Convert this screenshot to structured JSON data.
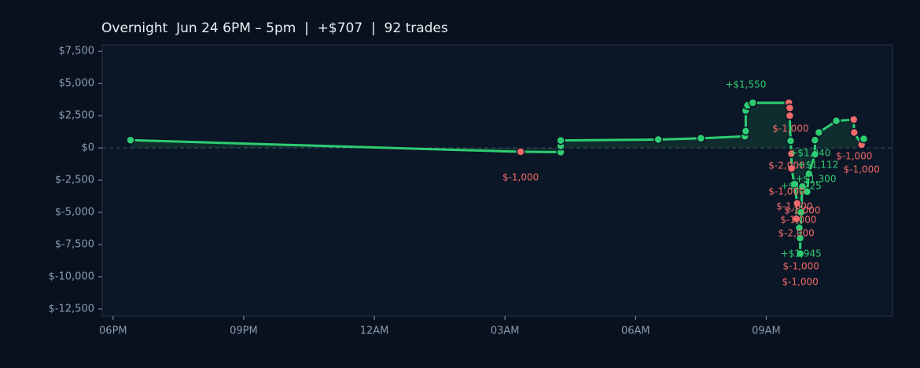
{
  "chart_data": {
    "type": "line",
    "title": "Overnight  Jun 24 6PM – 5pm  |  +$707  |  92 trades",
    "xlim": [
      -0.25,
      17.9
    ],
    "xticks": [
      {
        "value": 0,
        "label": "06PM"
      },
      {
        "value": 3,
        "label": "09PM"
      },
      {
        "value": 6,
        "label": "12AM"
      },
      {
        "value": 9,
        "label": "03AM"
      },
      {
        "value": 12,
        "label": "06AM"
      },
      {
        "value": 15,
        "label": "09AM"
      }
    ],
    "ylim": [
      -13050,
      8000
    ],
    "yticks": [
      {
        "value": 7500,
        "label": "$7,500"
      },
      {
        "value": 5000,
        "label": "$5,000"
      },
      {
        "value": 2500,
        "label": "$2,500"
      },
      {
        "value": 0,
        "label": "$0"
      },
      {
        "value": -2500,
        "label": "$-2,500"
      },
      {
        "value": -5000,
        "label": "$-5,000"
      },
      {
        "value": -7500,
        "label": "$-7,500"
      },
      {
        "value": -10000,
        "label": "$-10,000"
      },
      {
        "value": -12500,
        "label": "$-12,500"
      }
    ],
    "series": [
      {
        "color": "#2ecc71",
        "x": [
          0.4,
          9.36,
          10.28,
          10.28,
          10.28,
          12.52,
          13.5,
          14.51,
          14.53,
          14.53,
          14.57,
          14.69,
          15.52,
          15.54,
          15.54,
          15.56,
          15.58,
          15.58,
          15.65,
          15.71,
          15.69,
          15.76,
          15.78,
          15.78,
          15.8,
          15.83,
          15.94,
          15.98,
          16.12,
          16.12,
          16.21,
          16.61,
          17.01,
          17.02,
          17.19,
          17.24
        ],
        "values": [
          600,
          -300,
          -330,
          150,
          580,
          650,
          750,
          900,
          1300,
          2900,
          3300,
          3500,
          3500,
          3100,
          2500,
          550,
          -450,
          -1600,
          -2800,
          -4300,
          -5500,
          -6200,
          -7000,
          -8200,
          -5000,
          -3000,
          -3400,
          -2000,
          -500,
          600,
          1200,
          2100,
          2200,
          1200,
          250,
          700
        ],
        "marker_colors": [
          "#2ecc71",
          "#f06a6a",
          "#2ecc71",
          "#2ecc71",
          "#2ecc71",
          "#2ecc71",
          "#2ecc71",
          "#2ecc71",
          "#2ecc71",
          "#2ecc71",
          "#2ecc71",
          "#2ecc71",
          "#f06a6a",
          "#f06a6a",
          "#f06a6a",
          "#2ecc71",
          "#f06a6a",
          "#f06a6a",
          "#2ecc71",
          "#f06a6a",
          "#f06a6a",
          "#2ecc71",
          "#2ecc71",
          "#2ecc71",
          "#2ecc71",
          "#2ecc71",
          "#2ecc71",
          "#2ecc71",
          "#2ecc71",
          "#2ecc71",
          "#2ecc71",
          "#2ecc71",
          "#f06a6a",
          "#f06a6a",
          "#f06a6a",
          "#2ecc71"
        ]
      }
    ],
    "annotations": [
      {
        "text": "+$1,550",
        "x": 14.53,
        "y": 4880,
        "color": "#2ecc71"
      },
      {
        "text": "$-1,000",
        "x": 9.36,
        "y": -2320,
        "color": "#f06a6a"
      },
      {
        "text": "$-1,000",
        "x": 15.56,
        "y": 1460,
        "color": "#f06a6a"
      },
      {
        "text": "+$1,040",
        "x": 16.01,
        "y": -430,
        "color": "#2ecc71"
      },
      {
        "text": "$-1,000",
        "x": 17.02,
        "y": -670,
        "color": "#f06a6a"
      },
      {
        "text": "$-2,000",
        "x": 15.47,
        "y": -1400,
        "color": "#f06a6a"
      },
      {
        "text": "+$1,112",
        "x": 16.19,
        "y": -1340,
        "color": "#2ecc71"
      },
      {
        "text": "$-1,000",
        "x": 17.19,
        "y": -1710,
        "color": "#f06a6a"
      },
      {
        "text": "+$1,300",
        "x": 16.14,
        "y": -2440,
        "color": "#2ecc71"
      },
      {
        "text": "+$1,225",
        "x": 15.8,
        "y": -2990,
        "color": "#2ecc71"
      },
      {
        "text": "$-1,000",
        "x": 15.47,
        "y": -3410,
        "color": "#f06a6a"
      },
      {
        "text": "$-1,000",
        "x": 15.65,
        "y": -4570,
        "color": "#f06a6a"
      },
      {
        "text": "$-1,000",
        "x": 15.83,
        "y": -4880,
        "color": "#f06a6a"
      },
      {
        "text": "$-1,000",
        "x": 15.74,
        "y": -5610,
        "color": "#f06a6a"
      },
      {
        "text": "$-2,000",
        "x": 15.69,
        "y": -6650,
        "color": "#f06a6a"
      },
      {
        "text": "+$1,945",
        "x": 15.8,
        "y": -8230,
        "color": "#2ecc71"
      },
      {
        "text": "$-1,000",
        "x": 15.8,
        "y": -9210,
        "color": "#f06a6a"
      },
      {
        "text": "$-1,000",
        "x": 15.78,
        "y": -10430,
        "color": "#f06a6a"
      }
    ]
  }
}
